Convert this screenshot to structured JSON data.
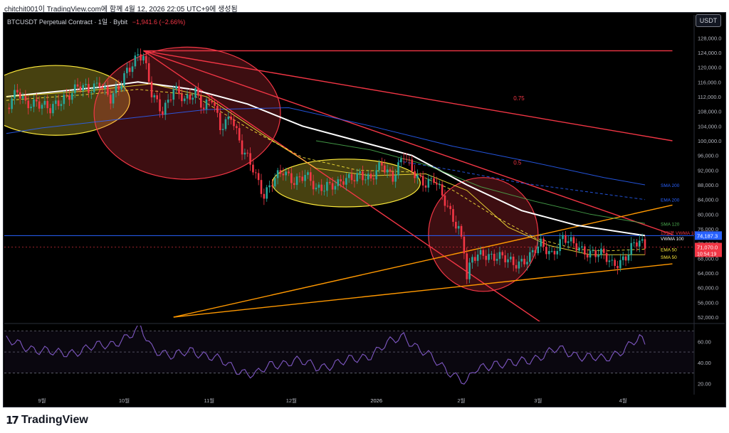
{
  "caption": "chitchit001이 TradingView.com에 함께 4월 12, 2026 22:05 UTC+9에 생성됨",
  "header": {
    "title": "BTCUSDT Perpetual Contract · 1일 · Bybit",
    "change": "−1,941.6 (−2.66%)",
    "currency_button": "USDT"
  },
  "brand": {
    "mark": "17",
    "name": "TradingView"
  },
  "colors": {
    "background": "#000000",
    "bull": "#26a69a",
    "bear": "#f23645",
    "resistance": "#f23645",
    "support": "#ff9800",
    "vwma": "#ffffff",
    "sma200": "#2962ff",
    "ema200": "#2962ff",
    "sma120": "#4caf50",
    "ema50": "#ffeb3b",
    "sma50": "#ffeb3b",
    "rsi": "#7e57c2",
    "zone_yellow": "#ffeb3b",
    "zone_red": "#f23645"
  },
  "chart_data": {
    "type": "candlestick",
    "symbol": "BTCUSDT Perpetual Contract",
    "interval": "1일",
    "exchange": "Bybit",
    "price_axis": {
      "ticks": [
        "128,000.0",
        "124,000.0",
        "120,000.0",
        "116,000.0",
        "112,000.0",
        "108,000.0",
        "104,000.0",
        "100,000.0",
        "96,000.0",
        "92,000.0",
        "88,000.0",
        "84,000.0",
        "80,000.0",
        "76,000.0",
        "72,000.0",
        "68,000.0",
        "64,000.0",
        "60,000.0",
        "56,000.0",
        "52,000.0"
      ],
      "ylim": [
        52000,
        130000
      ]
    },
    "time_axis": {
      "ticks": [
        "9월",
        "10월",
        "11월",
        "12월",
        "2026",
        "2월",
        "3월",
        "4월"
      ],
      "tick_days": [
        0,
        30,
        61,
        91,
        122,
        153,
        181,
        212
      ]
    },
    "price_path": [
      [
        -13,
        109000
      ],
      [
        -9,
        113000
      ],
      [
        -6,
        110000
      ],
      [
        -2,
        111000
      ],
      [
        3,
        108000
      ],
      [
        8,
        112000
      ],
      [
        13,
        114500
      ],
      [
        17,
        113500
      ],
      [
        21,
        116500
      ],
      [
        25,
        111000
      ],
      [
        28,
        114000
      ],
      [
        31,
        119500
      ],
      [
        35,
        123500
      ],
      [
        37,
        122500
      ],
      [
        40,
        112500
      ],
      [
        44,
        108500
      ],
      [
        48,
        114000
      ],
      [
        52,
        110500
      ],
      [
        56,
        114000
      ],
      [
        59,
        109000
      ],
      [
        62,
        111000
      ],
      [
        65,
        103500
      ],
      [
        69,
        107500
      ],
      [
        73,
        97000
      ],
      [
        77,
        92500
      ],
      [
        81,
        85500
      ],
      [
        84,
        88500
      ],
      [
        88,
        91500
      ],
      [
        92,
        89500
      ],
      [
        96,
        90500
      ],
      [
        100,
        86500
      ],
      [
        104,
        88500
      ],
      [
        108,
        87800
      ],
      [
        112,
        89500
      ],
      [
        116,
        91500
      ],
      [
        120,
        89000
      ],
      [
        124,
        93500
      ],
      [
        128,
        90500
      ],
      [
        132,
        95800
      ],
      [
        135,
        91500
      ],
      [
        140,
        88800
      ],
      [
        143,
        89500
      ],
      [
        146,
        84500
      ],
      [
        149,
        80500
      ],
      [
        152,
        76500
      ],
      [
        154,
        70500
      ],
      [
        155,
        62500
      ],
      [
        157,
        67500
      ],
      [
        161,
        69500
      ],
      [
        166,
        68500
      ],
      [
        172,
        66500
      ],
      [
        178,
        68500
      ],
      [
        182,
        71500
      ],
      [
        186,
        69500
      ],
      [
        190,
        73500
      ],
      [
        193,
        71800
      ],
      [
        197,
        70500
      ],
      [
        201,
        69500
      ],
      [
        205,
        68500
      ],
      [
        208,
        66500
      ],
      [
        211,
        67500
      ],
      [
        213,
        68500
      ],
      [
        215,
        70500
      ],
      [
        218,
        72500
      ],
      [
        220,
        71070
      ]
    ],
    "last_price": "71,070.0",
    "countdown": "10:54:19",
    "vwma_100_value": "74,187.3",
    "indicators": [
      {
        "name": "VWMA 100",
        "points": [
          [
            -13,
            112000
          ],
          [
            0,
            113000
          ],
          [
            20,
            114500
          ],
          [
            35,
            116000
          ],
          [
            55,
            114000
          ],
          [
            75,
            110000
          ],
          [
            95,
            104000
          ],
          [
            115,
            100000
          ],
          [
            135,
            96000
          ],
          [
            155,
            88000
          ],
          [
            175,
            81000
          ],
          [
            195,
            77000
          ],
          [
            220,
            74187
          ]
        ]
      },
      {
        "name": "SMA 200",
        "points": [
          [
            -13,
            102000
          ],
          [
            0,
            103500
          ],
          [
            30,
            106000
          ],
          [
            60,
            108500
          ],
          [
            90,
            109000
          ],
          [
            120,
            104000
          ],
          [
            150,
            98500
          ],
          [
            180,
            94000
          ],
          [
            205,
            90000
          ],
          [
            220,
            88000
          ]
        ]
      },
      {
        "name": "EMA 200",
        "points": [
          [
            130,
            94500
          ],
          [
            150,
            92000
          ],
          [
            175,
            88500
          ],
          [
            200,
            86000
          ],
          [
            220,
            84000
          ]
        ]
      },
      {
        "name": "SMA 120",
        "points": [
          [
            100,
            100000
          ],
          [
            120,
            97500
          ],
          [
            140,
            93500
          ],
          [
            160,
            87500
          ],
          [
            180,
            83500
          ],
          [
            200,
            80000
          ],
          [
            220,
            77500
          ]
        ]
      },
      {
        "name": "EMA 50",
        "points": [
          [
            -13,
            111000
          ],
          [
            15,
            112500
          ],
          [
            35,
            114000
          ],
          [
            55,
            112500
          ],
          [
            75,
            103500
          ],
          [
            95,
            95500
          ],
          [
            115,
            92000
          ],
          [
            135,
            91500
          ],
          [
            150,
            86500
          ],
          [
            165,
            79500
          ],
          [
            180,
            73500
          ],
          [
            195,
            70500
          ],
          [
            205,
            70000
          ],
          [
            220,
            70500
          ]
        ]
      },
      {
        "name": "SMA 50",
        "points": [
          [
            -13,
            112000
          ],
          [
            15,
            113500
          ],
          [
            40,
            115500
          ],
          [
            60,
            112000
          ],
          [
            80,
            102000
          ],
          [
            100,
            92500
          ],
          [
            120,
            90500
          ],
          [
            140,
            91000
          ],
          [
            155,
            86500
          ],
          [
            170,
            76500
          ],
          [
            185,
            71500
          ],
          [
            200,
            69000
          ],
          [
            220,
            69000
          ]
        ]
      }
    ],
    "indicator_labels": [
      {
        "text": "SMA 200",
        "price": 88000
      },
      {
        "text": "EMA 200",
        "price": 84000
      },
      {
        "text": "SMA 120",
        "price": 77500
      },
      {
        "text": "15일봉 VWMA 100 저항선",
        "price": 75000
      },
      {
        "text": "VWMA 100",
        "price": 73500
      },
      {
        "text": "EMA 50",
        "price": 70500
      },
      {
        "text": "SMA 50",
        "price": 68500
      }
    ],
    "trendlines": [
      {
        "name": "horizontal-resistance",
        "from": [
          37,
          124500
        ],
        "to": [
          230,
          124500
        ]
      },
      {
        "name": "fib-0.75-line",
        "from": [
          37,
          124500
        ],
        "to": [
          230,
          100000
        ]
      },
      {
        "name": "fib-0.5-line",
        "from": [
          37,
          124500
        ],
        "to": [
          230,
          74500
        ]
      },
      {
        "name": "fan-line-steep",
        "from": [
          37,
          124500
        ],
        "to": [
          191,
          46000
        ]
      },
      {
        "name": "ascending-support-upper",
        "from": [
          48,
          52000
        ],
        "to": [
          230,
          82500
        ]
      },
      {
        "name": "ascending-support-lower",
        "from": [
          48,
          52000
        ],
        "to": [
          230,
          66500
        ]
      }
    ],
    "annotations": [
      {
        "text": "0.75",
        "day": 172,
        "price": 111000
      },
      {
        "text": "0.5",
        "day": 172,
        "price": 93500
      }
    ],
    "zones": [
      {
        "type": "yellow",
        "center": [
          5,
          111000
        ],
        "rx_days": 27,
        "ry_price": 9500
      },
      {
        "type": "red",
        "center": [
          53,
          107500
        ],
        "rx_days": 34,
        "ry_price": 18000
      },
      {
        "type": "yellow",
        "center": [
          111,
          88500
        ],
        "rx_days": 27,
        "ry_price": 6500
      },
      {
        "type": "red",
        "center": [
          161,
          74500
        ],
        "rx_days": 20,
        "ry_price": 15500
      }
    ],
    "rsi": {
      "ticks": [
        "60.00",
        "40.00",
        "20.00"
      ],
      "ylim": [
        15,
        75
      ],
      "bands": [
        70,
        50,
        30
      ],
      "path": [
        [
          -13,
          60
        ],
        [
          -5,
          55
        ],
        [
          5,
          48
        ],
        [
          15,
          52
        ],
        [
          25,
          58
        ],
        [
          33,
          66
        ],
        [
          36,
          72
        ],
        [
          40,
          55
        ],
        [
          48,
          45
        ],
        [
          55,
          52
        ],
        [
          62,
          45
        ],
        [
          70,
          35
        ],
        [
          78,
          28
        ],
        [
          84,
          38
        ],
        [
          92,
          42
        ],
        [
          100,
          36
        ],
        [
          110,
          40
        ],
        [
          120,
          48
        ],
        [
          128,
          60
        ],
        [
          132,
          66
        ],
        [
          138,
          52
        ],
        [
          145,
          38
        ],
        [
          150,
          30
        ],
        [
          155,
          20
        ],
        [
          158,
          32
        ],
        [
          165,
          40
        ],
        [
          172,
          38
        ],
        [
          180,
          45
        ],
        [
          188,
          52
        ],
        [
          195,
          48
        ],
        [
          200,
          45
        ],
        [
          205,
          42
        ],
        [
          210,
          50
        ],
        [
          215,
          58
        ],
        [
          218,
          62
        ],
        [
          220,
          56
        ]
      ]
    }
  }
}
